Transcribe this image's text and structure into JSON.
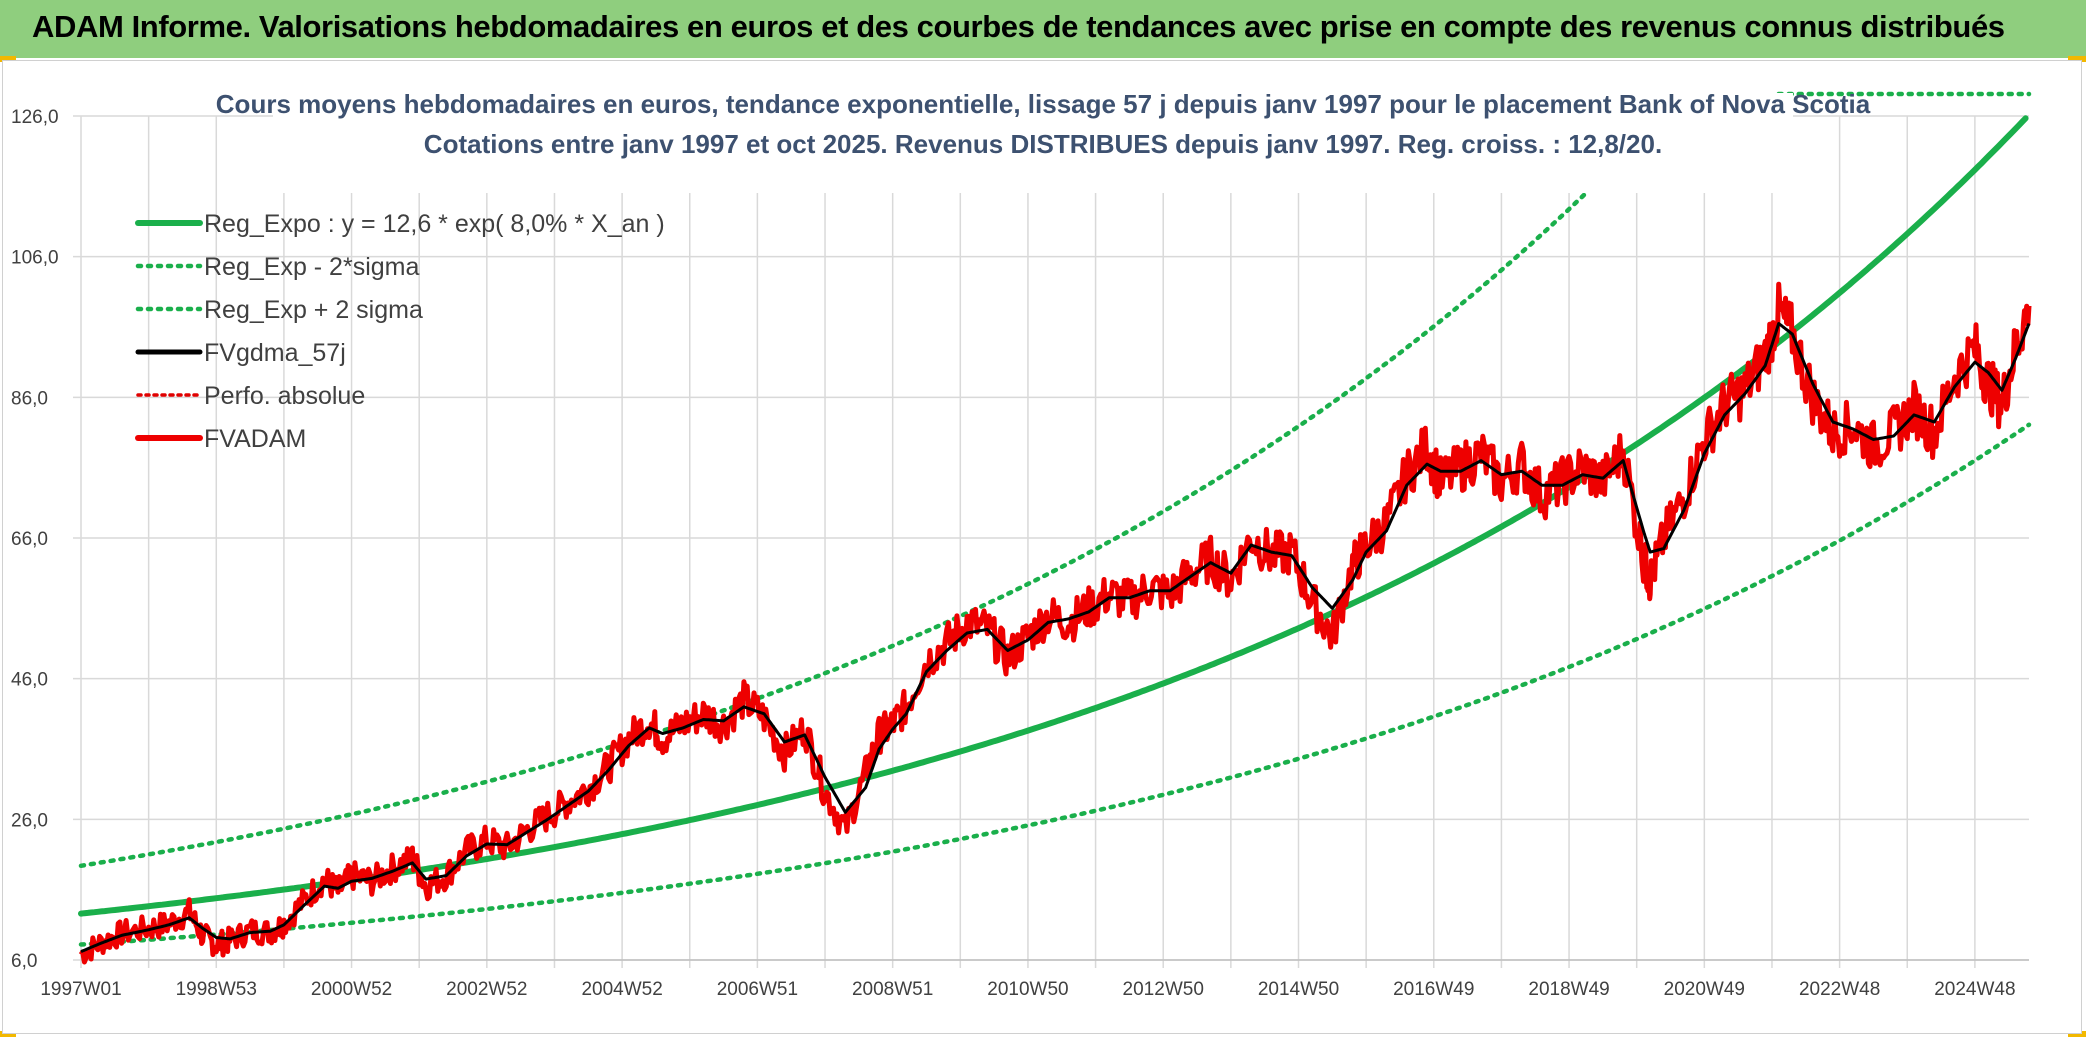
{
  "header": {
    "title": "ADAM Informe. Valorisations hebdomadaires en euros et des courbes de tendances avec prise en compte des revenus connus distribués"
  },
  "colors": {
    "banner": "#8fce7e",
    "reg_expo": "#1aaf4b",
    "reg_sigma": "#1aaf4b",
    "fvgdma": "#000000",
    "perfo": "#e00000",
    "fvadam": "#ee0000",
    "grid": "#d9d9d9"
  },
  "chart_data": {
    "type": "line",
    "title": "Cours moyens hebdomadaires en euros, tendance exponentielle, lissage 57 j depuis janv 1997 pour le placement Bank of Nova Scotia",
    "subtitle": "Cotations entre janv 1997 et oct 2025. Revenus DISTRIBUES depuis janv 1997. Reg. croiss. : 12,8/20.",
    "xlabel": "",
    "ylabel": "",
    "x_range": [
      1997.0,
      2025.8
    ],
    "ylim": [
      6.0,
      126.0
    ],
    "yticks": [
      6.0,
      26.0,
      46.0,
      66.0,
      86.0,
      106.0,
      126.0
    ],
    "ytick_labels": [
      "6,0",
      "26,0",
      "46,0",
      "66,0",
      "86,0",
      "106,0",
      "126,0"
    ],
    "xtick_labels": [
      "1997W01",
      "1998W53",
      "2000W52",
      "2002W52",
      "2004W52",
      "2006W51",
      "2008W51",
      "2010W50",
      "2012W50",
      "2014W50",
      "2016W49",
      "2018W49",
      "2020W49",
      "2022W48",
      "2024W48"
    ],
    "xtick_years": [
      1997.0,
      1999.0,
      2001.0,
      2003.0,
      2005.0,
      2007.0,
      2009.0,
      2011.0,
      2013.0,
      2015.0,
      2017.0,
      2019.0,
      2021.0,
      2023.0,
      2025.0
    ],
    "legend": [
      {
        "key": "reg_expo",
        "label": "Reg_Expo : y = 12,6 * exp( 8,0% *  X_an )"
      },
      {
        "key": "reg_minus",
        "label": "Reg_Exp - 2*sigma"
      },
      {
        "key": "reg_plus",
        "label": "Reg_Exp + 2 sigma"
      },
      {
        "key": "fvgdma",
        "label": "FVgdma_57j"
      },
      {
        "key": "perfo",
        "label": "Perfo. absolue"
      },
      {
        "key": "fvadam",
        "label": "FVADAM"
      }
    ],
    "series": [
      {
        "name": "FVADAM",
        "x": [
          1997.0,
          1997.3,
          1997.6,
          1998.0,
          1998.3,
          1998.6,
          1998.8,
          1999.0,
          1999.2,
          1999.5,
          1999.8,
          2000.0,
          2000.3,
          2000.6,
          2000.8,
          2001.0,
          2001.3,
          2001.6,
          2001.9,
          2002.1,
          2002.4,
          2002.7,
          2003.0,
          2003.3,
          2003.6,
          2003.9,
          2004.2,
          2004.5,
          2004.8,
          2005.1,
          2005.4,
          2005.6,
          2005.9,
          2006.2,
          2006.5,
          2006.8,
          2007.1,
          2007.4,
          2007.7,
          2008.0,
          2008.3,
          2008.6,
          2008.8,
          2009.0,
          2009.2,
          2009.5,
          2009.8,
          2010.1,
          2010.4,
          2010.7,
          2011.0,
          2011.3,
          2011.6,
          2011.9,
          2012.2,
          2012.5,
          2012.8,
          2013.1,
          2013.4,
          2013.7,
          2014.0,
          2014.3,
          2014.6,
          2014.9,
          2015.2,
          2015.5,
          2015.8,
          2016.0,
          2016.3,
          2016.6,
          2016.9,
          2017.1,
          2017.4,
          2017.7,
          2018.0,
          2018.3,
          2018.6,
          2018.9,
          2019.2,
          2019.5,
          2019.8,
          2020.1,
          2020.2,
          2020.4,
          2020.7,
          2021.0,
          2021.3,
          2021.6,
          2021.9,
          2022.1,
          2022.3,
          2022.6,
          2022.9,
          2023.2,
          2023.5,
          2023.8,
          2024.1,
          2024.4,
          2024.7,
          2025.0,
          2025.2,
          2025.4,
          2025.6,
          2025.8
        ],
        "values": [
          6.8,
          8.5,
          9.8,
          10.5,
          11.2,
          12.8,
          9.5,
          8.2,
          8.8,
          10.2,
          10.0,
          11.2,
          14.5,
          17.5,
          15.8,
          18.0,
          17.2,
          19.0,
          20.5,
          16.5,
          18.0,
          21.5,
          23.0,
          22.0,
          24.5,
          26.5,
          28.5,
          30.5,
          33.5,
          37.5,
          40.0,
          37.5,
          39.5,
          41.0,
          39.5,
          43.0,
          40.5,
          35.5,
          39.0,
          30.0,
          24.5,
          32.5,
          38.0,
          39.5,
          42.0,
          48.5,
          51.0,
          54.0,
          53.0,
          49.0,
          52.0,
          55.0,
          54.0,
          56.0,
          58.0,
          57.0,
          59.0,
          58.0,
          61.0,
          63.0,
          60.0,
          66.0,
          63.5,
          64.0,
          57.0,
          52.0,
          62.0,
          65.0,
          68.0,
          75.0,
          79.0,
          74.0,
          76.0,
          78.0,
          74.0,
          76.5,
          72.0,
          74.0,
          76.0,
          74.0,
          78.5,
          63.0,
          60.0,
          66.0,
          72.0,
          80.0,
          85.0,
          87.0,
          92.0,
          98.0,
          95.0,
          86.0,
          81.0,
          82.0,
          79.0,
          81.0,
          84.5,
          81.0,
          89.0,
          93.0,
          88.0,
          85.0,
          93.0,
          99.0
        ]
      },
      {
        "name": "FVgdma_57j",
        "x": [
          1997.0,
          1997.3,
          1997.6,
          1998.0,
          1998.3,
          1998.6,
          1998.8,
          1999.0,
          1999.2,
          1999.5,
          1999.8,
          2000.0,
          2000.3,
          2000.6,
          2000.8,
          2001.0,
          2001.3,
          2001.6,
          2001.9,
          2002.1,
          2002.4,
          2002.7,
          2003.0,
          2003.3,
          2003.6,
          2003.9,
          2004.2,
          2004.5,
          2004.8,
          2005.1,
          2005.4,
          2005.6,
          2005.9,
          2006.2,
          2006.5,
          2006.8,
          2007.1,
          2007.4,
          2007.7,
          2008.0,
          2008.3,
          2008.6,
          2008.8,
          2009.0,
          2009.2,
          2009.5,
          2009.8,
          2010.1,
          2010.4,
          2010.7,
          2011.0,
          2011.3,
          2011.6,
          2011.9,
          2012.2,
          2012.5,
          2012.8,
          2013.1,
          2013.4,
          2013.7,
          2014.0,
          2014.3,
          2014.6,
          2014.9,
          2015.2,
          2015.5,
          2015.8,
          2016.0,
          2016.3,
          2016.6,
          2016.9,
          2017.1,
          2017.4,
          2017.7,
          2018.0,
          2018.3,
          2018.6,
          2018.9,
          2019.2,
          2019.5,
          2019.8,
          2020.1,
          2020.2,
          2020.4,
          2020.7,
          2021.0,
          2021.3,
          2021.6,
          2021.9,
          2022.1,
          2022.3,
          2022.6,
          2022.9,
          2023.2,
          2023.5,
          2023.8,
          2024.1,
          2024.4,
          2024.7,
          2025.0,
          2025.2,
          2025.4,
          2025.6,
          2025.8
        ],
        "values": [
          7.2,
          8.4,
          9.5,
          10.3,
          11.0,
          12.0,
          10.5,
          9.2,
          9.0,
          9.9,
          10.1,
          11.0,
          13.8,
          16.5,
          16.2,
          17.2,
          17.6,
          18.6,
          19.8,
          17.5,
          18.0,
          20.8,
          22.5,
          22.4,
          24.2,
          26.0,
          28.0,
          30.0,
          33.0,
          36.5,
          39.0,
          38.2,
          39.0,
          40.2,
          40.0,
          42.0,
          41.0,
          37.0,
          38.0,
          32.0,
          27.0,
          30.5,
          36.0,
          38.8,
          41.0,
          47.0,
          50.0,
          52.5,
          53.0,
          50.0,
          51.5,
          54.0,
          54.5,
          55.5,
          57.5,
          57.5,
          58.5,
          58.5,
          60.5,
          62.5,
          61.0,
          65.0,
          64.0,
          63.5,
          59.0,
          56.0,
          60.0,
          64.0,
          67.0,
          73.5,
          76.5,
          75.5,
          75.5,
          77.0,
          75.0,
          75.5,
          73.5,
          73.5,
          75.0,
          74.5,
          77.0,
          67.0,
          64.0,
          64.5,
          70.0,
          78.0,
          83.5,
          86.5,
          90.5,
          96.5,
          95.0,
          88.0,
          82.5,
          81.5,
          80.0,
          80.5,
          83.5,
          82.5,
          87.5,
          91.0,
          89.5,
          87.0,
          91.5,
          96.5
        ]
      },
      {
        "name": "Reg_Expo",
        "base": 12.6,
        "rate": 0.08,
        "x_start": 1997.0,
        "x_end": 2025.8
      },
      {
        "name": "Reg_Exp - 2*sigma",
        "base": 8.2,
        "rate": 0.08,
        "x_start": 1997.0,
        "x_end": 2025.8
      },
      {
        "name": "Reg_Exp + 2 sigma",
        "base": 19.4,
        "rate": 0.08,
        "x_start": 1997.0,
        "x_end": 2025.8
      }
    ]
  }
}
